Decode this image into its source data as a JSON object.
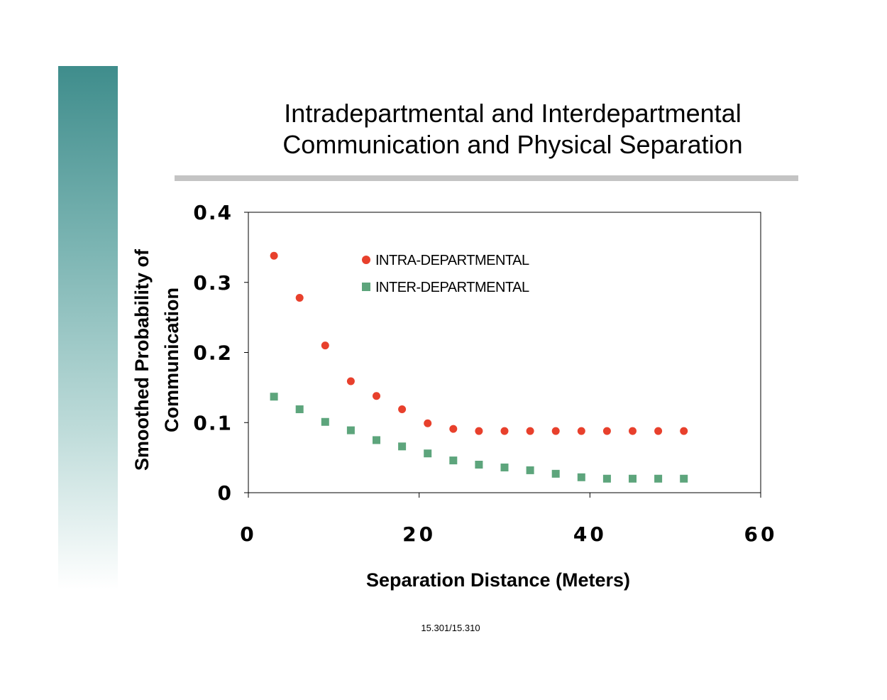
{
  "slide": {
    "title_line1": "Intradepartmental and Interdepartmental",
    "title_line2": "Communication and Physical Separation",
    "footer": "15.301/15.310",
    "accent_color": "#3f8d8c",
    "rule_color": "#c4c4c4"
  },
  "chart_data": {
    "type": "scatter",
    "title": "Intradepartmental and Interdepartmental Communication and Physical Separation",
    "xlabel": "Separation Distance  (Meters)",
    "ylabel_line1": "Smoothed Probability of",
    "ylabel_line2": "Communication",
    "xlim": [
      0,
      60
    ],
    "ylim": [
      0,
      0.4
    ],
    "xticks": [
      0,
      20,
      40,
      60
    ],
    "xtick_labels": [
      "0",
      "20",
      "40",
      "60"
    ],
    "yticks": [
      0,
      0.1,
      0.2,
      0.3,
      0.4
    ],
    "ytick_labels": [
      "0",
      "0.1",
      "0.2",
      "0.3",
      "0.4"
    ],
    "grid": false,
    "legend_position": "top-center",
    "series": [
      {
        "name": "INTRA-DEPARTMENTAL",
        "marker": "circle",
        "color": "#e8402c",
        "x": [
          3,
          6,
          9,
          12,
          15,
          18,
          21,
          24,
          27,
          30,
          33,
          36,
          39,
          42,
          45,
          48,
          51
        ],
        "y": [
          0.338,
          0.278,
          0.21,
          0.159,
          0.138,
          0.119,
          0.099,
          0.091,
          0.088,
          0.088,
          0.088,
          0.088,
          0.088,
          0.088,
          0.088,
          0.088,
          0.088
        ]
      },
      {
        "name": "INTER-DEPARTMENTAL",
        "marker": "square",
        "color": "#5da57c",
        "x": [
          3,
          6,
          9,
          12,
          15,
          18,
          21,
          24,
          27,
          30,
          33,
          36,
          39,
          42,
          45,
          48,
          51
        ],
        "y": [
          0.137,
          0.119,
          0.101,
          0.089,
          0.075,
          0.066,
          0.056,
          0.046,
          0.04,
          0.036,
          0.032,
          0.027,
          0.022,
          0.02,
          0.02,
          0.02,
          0.02
        ]
      }
    ]
  }
}
